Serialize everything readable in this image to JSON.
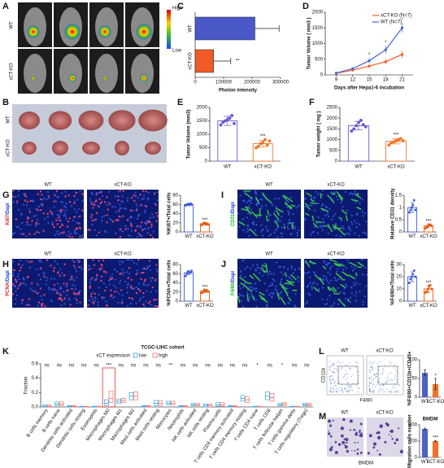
{
  "labels": {
    "panels": [
      "A",
      "B",
      "C",
      "D",
      "E",
      "F",
      "G",
      "H",
      "I",
      "J",
      "K",
      "L",
      "M"
    ],
    "wt": "WT",
    "ko": "xCT-KO",
    "colorbar": [
      "High",
      "Low"
    ],
    "stains": [
      [
        "Ki67",
        "/Dapi"
      ],
      [
        "PCNA",
        "/Dapi"
      ],
      [
        "CD31",
        "/Dapi"
      ],
      [
        "F4/80",
        "/Dapi"
      ]
    ],
    "flow_y": "CD11b",
    "flow_x": "F4/80",
    "bmdm": "BMDM"
  },
  "chart_data": [
    {
      "type": "hbar",
      "categories": [
        "WT",
        "xCT-KO"
      ],
      "values": [
        210000,
        65000
      ],
      "errors": [
        85000,
        60000
      ],
      "colors": [
        "#4a58c8",
        "#f05a28"
      ],
      "xlim": [
        0,
        300000
      ],
      "xticks": [
        0,
        100000,
        200000,
        300000
      ],
      "xlabel": "Photon intensity",
      "annotation": "**"
    },
    {
      "type": "line",
      "x": [
        9,
        12,
        15,
        18,
        21
      ],
      "xlim": [
        7,
        23
      ],
      "xticks": [
        9,
        12,
        15,
        18,
        21
      ],
      "ylim": [
        0,
        2000
      ],
      "yticks": [
        0,
        500,
        1000,
        1500,
        2000
      ],
      "xlabel": "Days after Hepa1-6 incubation",
      "ylabel": "Tumor Volume ( mm3 )",
      "series": [
        {
          "name": "xCT-KO (N=7)",
          "color": "#f05a28",
          "values": [
            50,
            150,
            280,
            420,
            650
          ],
          "errors": [
            10,
            30,
            50,
            80,
            120
          ]
        },
        {
          "name": "WT (N=7)",
          "color": "#4a63c8",
          "values": [
            60,
            200,
            450,
            800,
            1500
          ],
          "errors": [
            10,
            40,
            80,
            120,
            150
          ]
        }
      ],
      "annotations": [
        {
          "x": 15,
          "text": "*"
        },
        {
          "x": 18,
          "text": "*"
        },
        {
          "x": 21,
          "text": "*"
        }
      ]
    },
    {
      "type": "bar",
      "categories": [
        "WT",
        "xCT-KO"
      ],
      "values": [
        1500,
        650
      ],
      "errors": [
        170,
        120
      ],
      "points": [
        [
          1350,
          1450,
          1500,
          1550,
          1600,
          1700,
          1400
        ],
        [
          500,
          550,
          650,
          700,
          800,
          600,
          750
        ]
      ],
      "colors": [
        "#6a5acd",
        "#f07828"
      ],
      "filled": false,
      "ylim": [
        0,
        2000
      ],
      "yticks": [
        0,
        500,
        1000,
        1500,
        2000
      ],
      "ylabel": "Tumor Volume (mm3)",
      "annotation": "***"
    },
    {
      "type": "bar",
      "categories": [
        "WT",
        "xCT-KO"
      ],
      "values": [
        1650,
        920
      ],
      "errors": [
        200,
        120
      ],
      "points": [
        [
          1400,
          1500,
          1650,
          1800,
          1900,
          1700,
          1600
        ],
        [
          750,
          850,
          900,
          950,
          1000,
          1050,
          950
        ]
      ],
      "colors": [
        "#6a5acd",
        "#f07828"
      ],
      "filled": false,
      "ylim": [
        0,
        2500
      ],
      "yticks": [
        0,
        500,
        1000,
        1500,
        2000,
        2500
      ],
      "ylabel": "Tumor weight ( mg )",
      "annotation": "***"
    },
    {
      "type": "bar",
      "categories": [
        "WT",
        "xCT-KO"
      ],
      "values": [
        60,
        18
      ],
      "errors": [
        2,
        2
      ],
      "points": [
        [
          58,
          60,
          61,
          59,
          62,
          60
        ],
        [
          15,
          18,
          20,
          17,
          19,
          16
        ]
      ],
      "colors": [
        "#3b5bdb",
        "#e8590c"
      ],
      "filled": false,
      "ylim": [
        0,
        80
      ],
      "yticks": [
        0,
        20,
        40,
        60,
        80
      ],
      "ylabel": "%Ki67+/Total cells",
      "annotation": "***"
    },
    {
      "type": "bar",
      "categories": [
        "WT",
        "xCT-KO"
      ],
      "values": [
        62,
        22
      ],
      "errors": [
        4,
        3
      ],
      "points": [
        [
          55,
          60,
          65,
          63,
          62,
          66
        ],
        [
          18,
          20,
          25,
          22,
          24,
          21
        ]
      ],
      "colors": [
        "#3b5bdb",
        "#e8590c"
      ],
      "filled": false,
      "ylim": [
        0,
        80
      ],
      "yticks": [
        0,
        20,
        40,
        60,
        80
      ],
      "ylabel": "%PCNA+/Total cells",
      "annotation": "***"
    },
    {
      "type": "bar",
      "categories": [
        "WT",
        "xCT-KO"
      ],
      "values": [
        1.0,
        0.25
      ],
      "errors": [
        0.2,
        0.08
      ],
      "points": [
        [
          0.8,
          0.9,
          1.0,
          1.1,
          1.3,
          0.9
        ],
        [
          0.15,
          0.2,
          0.25,
          0.3,
          0.3,
          0.25
        ]
      ],
      "colors": [
        "#3b5bdb",
        "#e8590c"
      ],
      "filled": false,
      "ylim": [
        0,
        1.5
      ],
      "yticks": [
        0,
        0.5,
        1,
        1.5
      ],
      "ylabel": "Relative CD31 density",
      "annotation": "***"
    },
    {
      "type": "bar",
      "categories": [
        "WT",
        "xCT-KO"
      ],
      "values": [
        20,
        10
      ],
      "errors": [
        4,
        3
      ],
      "points": [
        [
          15,
          18,
          20,
          22,
          25,
          20
        ],
        [
          7,
          8,
          10,
          12,
          13,
          10
        ]
      ],
      "colors": [
        "#3b5bdb",
        "#e8590c"
      ],
      "filled": false,
      "ylim": [
        0,
        30
      ],
      "yticks": [
        0,
        10,
        20,
        30
      ],
      "ylabel": "%F4/80+/Total cells",
      "annotation": "***"
    },
    {
      "type": "box",
      "title": "TCGC-LIHC cohort",
      "legend_title": "xCT expression",
      "ylabel": "Fraction",
      "ylim": [
        0,
        0.6
      ],
      "yticks": [
        {
          "value": 0,
          "label": "0.0"
        },
        {
          "value": 0.2,
          "label": "0.2"
        },
        {
          "value": 0.4,
          "label": "0.4"
        },
        {
          "value": 0.6,
          "label": "0.6"
        }
      ],
      "categories": [
        "B cells memory",
        "B cells naive",
        "Dendritic cells activated",
        "Dendritic cells resting",
        "Eosinophils",
        "Macrophages M0",
        "Macrophages M1",
        "Macrophages M2",
        "Mast cells activated",
        "Mast cells resting",
        "Monocytes",
        "Neutrophils",
        "NK cells activated",
        "NK cells resting",
        "Plasma cells",
        "T cells CD4 memory activated",
        "T cells CD4 memory resting",
        "T cells CD4 naive",
        "T cells CD8",
        "T cells follicular helper",
        "T cells gamma delta",
        "T cells regulatory (Tregs)"
      ],
      "signif": [
        "ns",
        "ns",
        "ns",
        "ns",
        "ns",
        "***",
        "ns",
        "ns",
        "ns",
        "ns",
        "**",
        "ns",
        "ns",
        "ns",
        "ns",
        "ns",
        "ns",
        "*",
        "ns",
        "*",
        "ns",
        "ns"
      ],
      "highlight_index": 5,
      "highlight_color": "#e03030",
      "series": [
        {
          "name": "low",
          "color": "#2ea7e0",
          "q1": [
            0,
            0.02,
            0,
            0,
            0,
            0.02,
            0.05,
            0.1,
            0,
            0.02,
            0.03,
            0,
            0.02,
            0,
            0.01,
            0,
            0.08,
            0,
            0.1,
            0.02,
            0,
            0.02
          ],
          "median": [
            0.01,
            0.04,
            0.01,
            0,
            0,
            0.05,
            0.08,
            0.15,
            0.01,
            0.05,
            0.05,
            0.01,
            0.03,
            0.02,
            0.03,
            0.01,
            0.12,
            0,
            0.15,
            0.03,
            0,
            0.03
          ],
          "q3": [
            0.03,
            0.07,
            0.02,
            0.01,
            0.01,
            0.1,
            0.11,
            0.2,
            0.02,
            0.09,
            0.08,
            0.02,
            0.05,
            0.04,
            0.06,
            0.02,
            0.16,
            0.01,
            0.21,
            0.05,
            0.01,
            0.05
          ]
        },
        {
          "name": "high",
          "color": "#f07070",
          "q1": [
            0,
            0.02,
            0,
            0,
            0,
            0.06,
            0.06,
            0.1,
            0,
            0.02,
            0.03,
            0,
            0.02,
            0,
            0.01,
            0,
            0.06,
            0,
            0.08,
            0.02,
            0,
            0.02
          ],
          "median": [
            0.01,
            0.04,
            0.01,
            0,
            0,
            0.12,
            0.09,
            0.15,
            0.01,
            0.05,
            0.05,
            0.01,
            0.03,
            0.02,
            0.03,
            0.01,
            0.1,
            0,
            0.13,
            0.04,
            0,
            0.03
          ],
          "q3": [
            0.03,
            0.07,
            0.02,
            0.01,
            0.01,
            0.22,
            0.12,
            0.21,
            0.02,
            0.09,
            0.08,
            0.02,
            0.05,
            0.04,
            0.06,
            0.02,
            0.14,
            0.01,
            0.19,
            0.06,
            0.01,
            0.05
          ]
        }
      ]
    },
    {
      "type": "bar",
      "categories": [
        "WT",
        "xCT-KO"
      ],
      "values": [
        65,
        35
      ],
      "errors": [
        8,
        15
      ],
      "colors": [
        "#4a63c8",
        "#f0712c"
      ],
      "filled": true,
      "ylim": [
        0,
        100
      ],
      "yticks": [
        0,
        50,
        100
      ],
      "ylabel": "%F4/80+CD11b+/CD45+",
      "annotation": "*"
    },
    {
      "type": "bar",
      "title": "BMDM",
      "categories": [
        "WT",
        "xCT-KO"
      ],
      "values": [
        350,
        200
      ],
      "errors": [
        10,
        8
      ],
      "colors": [
        "#4a63c8",
        "#f0712c"
      ],
      "filled": true,
      "ylim": [
        0,
        400
      ],
      "yticks": [
        0,
        200,
        400
      ],
      "ylabel": "Migration cells number",
      "annotation": "***"
    }
  ]
}
